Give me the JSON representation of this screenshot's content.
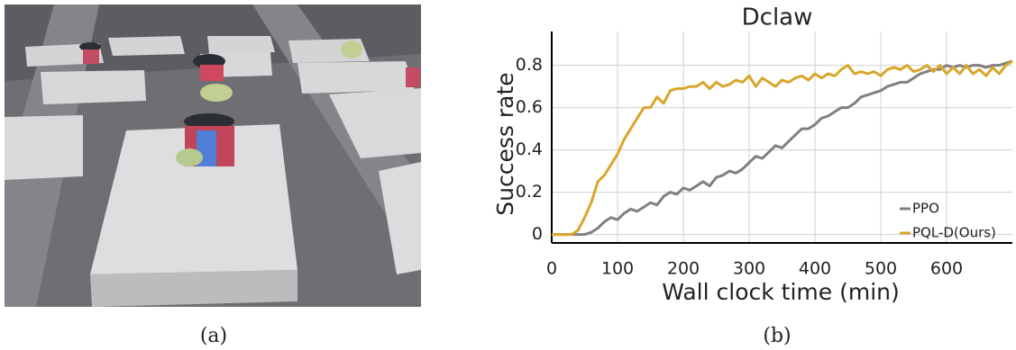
{
  "chart_data": {
    "type": "line",
    "title": "Dclaw",
    "x_label": "Wall clock time (min)",
    "y_label": "Success rate",
    "x": [
      0,
      10,
      20,
      30,
      40,
      50,
      60,
      70,
      80,
      90,
      100,
      110,
      120,
      130,
      140,
      150,
      160,
      170,
      180,
      190,
      200,
      210,
      220,
      230,
      240,
      250,
      260,
      270,
      280,
      290,
      300,
      310,
      320,
      330,
      340,
      350,
      360,
      370,
      380,
      390,
      400,
      410,
      420,
      430,
      440,
      450,
      460,
      470,
      480,
      490,
      500,
      510,
      520,
      530,
      540,
      550,
      560,
      570,
      580,
      590,
      600,
      610,
      620,
      630,
      640,
      650,
      660,
      670,
      680,
      690,
      700
    ],
    "series": [
      {
        "name": "PPO",
        "color": "#808080",
        "values": [
          0,
          0,
          0,
          0,
          0,
          0,
          0.01,
          0.03,
          0.06,
          0.08,
          0.07,
          0.1,
          0.12,
          0.11,
          0.13,
          0.15,
          0.14,
          0.18,
          0.2,
          0.19,
          0.22,
          0.21,
          0.23,
          0.25,
          0.23,
          0.27,
          0.28,
          0.3,
          0.29,
          0.31,
          0.34,
          0.37,
          0.36,
          0.39,
          0.42,
          0.41,
          0.44,
          0.47,
          0.5,
          0.5,
          0.52,
          0.55,
          0.56,
          0.58,
          0.6,
          0.6,
          0.62,
          0.65,
          0.66,
          0.67,
          0.68,
          0.7,
          0.71,
          0.72,
          0.72,
          0.74,
          0.76,
          0.77,
          0.78,
          0.78,
          0.8,
          0.79,
          0.8,
          0.79,
          0.8,
          0.8,
          0.79,
          0.8,
          0.8,
          0.81,
          0.82
        ]
      },
      {
        "name": "PQL-D(Ours)",
        "color": "#d9a62a",
        "values": [
          0,
          0,
          0,
          0,
          0.02,
          0.08,
          0.15,
          0.25,
          0.28,
          0.33,
          0.38,
          0.45,
          0.5,
          0.55,
          0.6,
          0.6,
          0.65,
          0.62,
          0.68,
          0.69,
          0.69,
          0.7,
          0.7,
          0.72,
          0.69,
          0.72,
          0.7,
          0.71,
          0.73,
          0.72,
          0.75,
          0.7,
          0.74,
          0.72,
          0.7,
          0.73,
          0.72,
          0.74,
          0.75,
          0.73,
          0.76,
          0.74,
          0.76,
          0.75,
          0.78,
          0.8,
          0.76,
          0.77,
          0.76,
          0.77,
          0.75,
          0.78,
          0.79,
          0.78,
          0.8,
          0.77,
          0.78,
          0.8,
          0.77,
          0.8,
          0.76,
          0.79,
          0.76,
          0.8,
          0.76,
          0.78,
          0.75,
          0.79,
          0.76,
          0.8,
          0.82
        ]
      }
    ],
    "xlim": [
      0,
      700
    ],
    "ylim": [
      -0.04,
      0.96
    ],
    "xticks": [
      0,
      100,
      200,
      300,
      400,
      500,
      600
    ],
    "yticks": [
      0,
      0.2,
      0.4,
      0.6,
      0.8
    ],
    "grid": true,
    "legend": "lower right"
  },
  "captions": [
    "(a)",
    "(b)"
  ]
}
